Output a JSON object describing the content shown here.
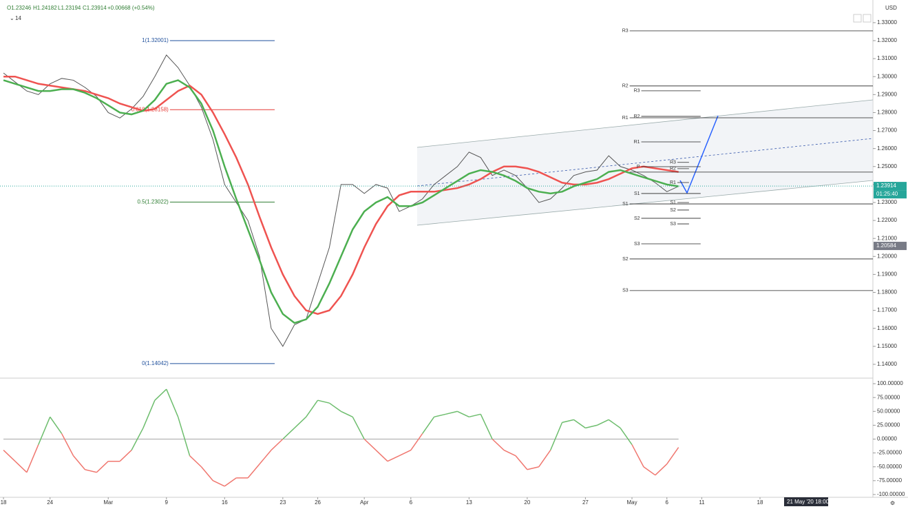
{
  "header": {
    "open": "O1.23246",
    "high": "H1.24182",
    "low": "L1.23194",
    "close": "C1.23914",
    "change": "+0.00668 (+0.54%)",
    "interval": "14",
    "currency": "USD",
    "crosshair_time": "21 May '20  18:00"
  },
  "chart_data": [
    {
      "type": "line",
      "x": [
        0,
        1,
        2,
        3,
        4,
        5,
        6,
        7,
        8,
        9,
        10,
        11,
        12,
        13,
        14,
        15,
        16,
        17,
        18,
        19,
        20,
        21,
        22,
        23,
        24,
        25,
        26,
        27,
        28,
        29,
        30,
        31,
        32,
        33,
        34,
        35,
        36,
        37,
        38,
        39,
        40,
        41,
        42,
        43,
        44,
        45,
        46,
        47,
        48,
        49,
        50,
        51,
        52,
        53,
        54,
        55,
        56,
        57,
        58
      ],
      "series": [
        {
          "color": "#555555",
          "values": [
            1.302,
            1.297,
            1.292,
            1.29,
            1.296,
            1.299,
            1.298,
            1.294,
            1.289,
            1.28,
            1.277,
            1.282,
            1.289,
            1.3,
            1.312,
            1.305,
            1.295,
            1.283,
            1.265,
            1.24,
            1.23,
            1.22,
            1.2,
            1.16,
            1.15,
            1.162,
            1.165,
            1.185,
            1.205,
            1.24,
            1.24,
            1.235,
            1.24,
            1.238,
            1.225,
            1.228,
            1.232,
            1.24,
            1.245,
            1.25,
            1.258,
            1.255,
            1.245,
            1.248,
            1.245,
            1.238,
            1.23,
            1.232,
            1.238,
            1.245,
            1.247,
            1.248,
            1.256,
            1.25,
            1.248,
            1.245,
            1.241,
            1.236,
            1.239
          ]
        },
        {
          "color": "#ef5350",
          "values": [
            1.3,
            1.3,
            1.298,
            1.296,
            1.295,
            1.294,
            1.293,
            1.292,
            1.29,
            1.288,
            1.285,
            1.283,
            1.281,
            1.282,
            1.287,
            1.292,
            1.295,
            1.29,
            1.28,
            1.268,
            1.255,
            1.24,
            1.222,
            1.205,
            1.19,
            1.178,
            1.17,
            1.168,
            1.17,
            1.178,
            1.19,
            1.205,
            1.218,
            1.228,
            1.234,
            1.236,
            1.236,
            1.236,
            1.237,
            1.238,
            1.24,
            1.243,
            1.247,
            1.25,
            1.25,
            1.249,
            1.247,
            1.244,
            1.241,
            1.24,
            1.24,
            1.241,
            1.243,
            1.246,
            1.249,
            1.25,
            1.249,
            1.248,
            1.247
          ]
        },
        {
          "color": "#4caf50",
          "values": [
            1.298,
            1.296,
            1.294,
            1.292,
            1.292,
            1.293,
            1.293,
            1.291,
            1.288,
            1.284,
            1.28,
            1.279,
            1.281,
            1.287,
            1.296,
            1.298,
            1.294,
            1.285,
            1.27,
            1.25,
            1.232,
            1.215,
            1.198,
            1.18,
            1.168,
            1.163,
            1.165,
            1.172,
            1.185,
            1.2,
            1.215,
            1.225,
            1.23,
            1.233,
            1.228,
            1.228,
            1.23,
            1.234,
            1.238,
            1.242,
            1.246,
            1.248,
            1.247,
            1.245,
            1.242,
            1.238,
            1.236,
            1.235,
            1.236,
            1.239,
            1.241,
            1.243,
            1.247,
            1.248,
            1.246,
            1.244,
            1.242,
            1.24,
            1.239
          ]
        }
      ],
      "xlim": [
        -0.3,
        74.7
      ],
      "xticks": [
        {
          "value": 0,
          "label": "18"
        },
        {
          "value": 4,
          "label": "24"
        },
        {
          "value": 9,
          "label": "Mar"
        },
        {
          "value": 14,
          "label": "9"
        },
        {
          "value": 19,
          "label": "16"
        },
        {
          "value": 24,
          "label": "23"
        },
        {
          "value": 27,
          "label": "26"
        },
        {
          "value": 31,
          "label": "Apr"
        },
        {
          "value": 35,
          "label": "6"
        },
        {
          "value": 40,
          "label": "13"
        },
        {
          "value": 45,
          "label": "20"
        },
        {
          "value": 50,
          "label": "27"
        },
        {
          "value": 54,
          "label": "May"
        },
        {
          "value": 57,
          "label": "6"
        },
        {
          "value": 60,
          "label": "11"
        },
        {
          "value": 65,
          "label": "18"
        }
      ],
      "ylim": [
        1.1327,
        1.3426
      ],
      "yticks": [
        {
          "value": 1.14,
          "label": "1.14000"
        },
        {
          "value": 1.15,
          "label": "1.15000"
        },
        {
          "value": 1.16,
          "label": "1.16000"
        },
        {
          "value": 1.17,
          "label": "1.17000"
        },
        {
          "value": 1.18,
          "label": "1.18000"
        },
        {
          "value": 1.19,
          "label": "1.19000"
        },
        {
          "value": 1.2,
          "label": "1.20000"
        },
        {
          "value": 1.21,
          "label": "1.21000"
        },
        {
          "value": 1.22,
          "label": "1.22000"
        },
        {
          "value": 1.23,
          "label": "1.23000"
        },
        {
          "value": 1.24,
          "label": "1.24000"
        },
        {
          "value": 1.25,
          "label": "1.25000"
        },
        {
          "value": 1.26,
          "label": "1.26000"
        },
        {
          "value": 1.27,
          "label": "1.27000"
        },
        {
          "value": 1.28,
          "label": "1.28000"
        },
        {
          "value": 1.29,
          "label": "1.29000"
        },
        {
          "value": 1.3,
          "label": "1.30000"
        },
        {
          "value": 1.31,
          "label": "1.31000"
        },
        {
          "value": 1.32,
          "label": "1.32000"
        },
        {
          "value": 1.33,
          "label": "1.33000"
        }
      ],
      "fib": {
        "x": [
          14.3,
          23.3
        ],
        "levels": [
          {
            "value": 1.32001,
            "label": "1(1.32001)",
            "color": "#1e4f9c"
          },
          {
            "value": 1.28158,
            "label": "0.618(1.28158)",
            "color": "#e53935"
          },
          {
            "value": 1.23022,
            "label": "0.5(1.23022)",
            "color": "#2e7d32"
          },
          {
            "value": 1.14042,
            "label": "0(1.14042)",
            "color": "#1e4f9c"
          }
        ]
      },
      "pivots": [
        {
          "x": [
            53.8,
            74.7
          ],
          "levels": [
            {
              "label": "R3",
              "value": 1.3254
            },
            {
              "label": "R2",
              "value": 1.2948
            },
            {
              "label": "R1",
              "value": 1.2771
            },
            {
              "value": 1.2469
            },
            {
              "label": "S1",
              "value": 1.2292
            },
            {
              "label": "S2",
              "value": 1.1986
            },
            {
              "label": "S3",
              "value": 1.181
            }
          ]
        },
        {
          "x": [
            54.8,
            59.9
          ],
          "levels": [
            {
              "label": "R3",
              "value": 1.2921
            },
            {
              "label": "R2",
              "value": 1.2779
            },
            {
              "label": "R1",
              "value": 1.2637
            },
            {
              "label": "P",
              "value": 1.2499
            },
            {
              "label": "S1",
              "value": 1.235
            },
            {
              "label": "S2",
              "value": 1.2212
            },
            {
              "label": "S3",
              "value": 1.207
            }
          ]
        },
        {
          "x": [
            57.9,
            58.9
          ],
          "levels": [
            {
              "label": "R3",
              "value": 1.2523
            },
            {
              "label": "R2",
              "value": 1.2488
            },
            {
              "label": "R1",
              "value": 1.2411
            },
            {
              "label": "S1",
              "value": 1.23
            },
            {
              "label": "S2",
              "value": 1.2258
            },
            {
              "label": "S3",
              "value": 1.2181
            }
          ]
        }
      ],
      "price_tags": [
        {
          "value": 1.23914,
          "label": "1.23914",
          "timer": "01:25:40",
          "color": "#26a69a"
        },
        {
          "value": 1.20584,
          "label": "1.20584",
          "color": "#787b86"
        }
      ]
    },
    {
      "type": "oscillator",
      "x": [
        0,
        1,
        2,
        3,
        4,
        5,
        6,
        7,
        8,
        9,
        10,
        11,
        12,
        13,
        14,
        15,
        16,
        17,
        18,
        19,
        20,
        21,
        22,
        23,
        24,
        25,
        26,
        27,
        28,
        29,
        30,
        31,
        32,
        33,
        34,
        35,
        36,
        37,
        38,
        39,
        40,
        41,
        42,
        43,
        44,
        45,
        46,
        47,
        48,
        49,
        50,
        51,
        52,
        53,
        54,
        55,
        56,
        57,
        58
      ],
      "values": [
        -20,
        -40,
        -60,
        -10,
        40,
        10,
        -30,
        -55,
        -60,
        -40,
        -40,
        -20,
        20,
        70,
        90,
        40,
        -30,
        -50,
        -75,
        -85,
        -70,
        -70,
        -45,
        -20,
        0,
        20,
        40,
        70,
        65,
        50,
        40,
        0,
        -20,
        -40,
        -30,
        -20,
        10,
        40,
        45,
        50,
        40,
        45,
        0,
        -20,
        -30,
        -55,
        -50,
        -20,
        30,
        35,
        20,
        25,
        35,
        20,
        -10,
        -50,
        -65,
        -45,
        -15
      ],
      "colors": {
        "above": "#6dbd6d",
        "below": "#f0776f"
      },
      "ylim": [
        -105,
        107.5
      ],
      "yticks": [
        {
          "value": 100,
          "label": "100.00000"
        },
        {
          "value": 75,
          "label": "75.00000"
        },
        {
          "value": 50,
          "label": "50.00000"
        },
        {
          "value": 25,
          "label": "25.00000"
        },
        {
          "value": 0,
          "label": "0.00000"
        },
        {
          "value": -25,
          "label": "-25.00000"
        },
        {
          "value": -50,
          "label": "-50.00000"
        },
        {
          "value": -75,
          "label": "-75.00000"
        },
        {
          "value": -100,
          "label": "-100.00000"
        }
      ]
    }
  ]
}
